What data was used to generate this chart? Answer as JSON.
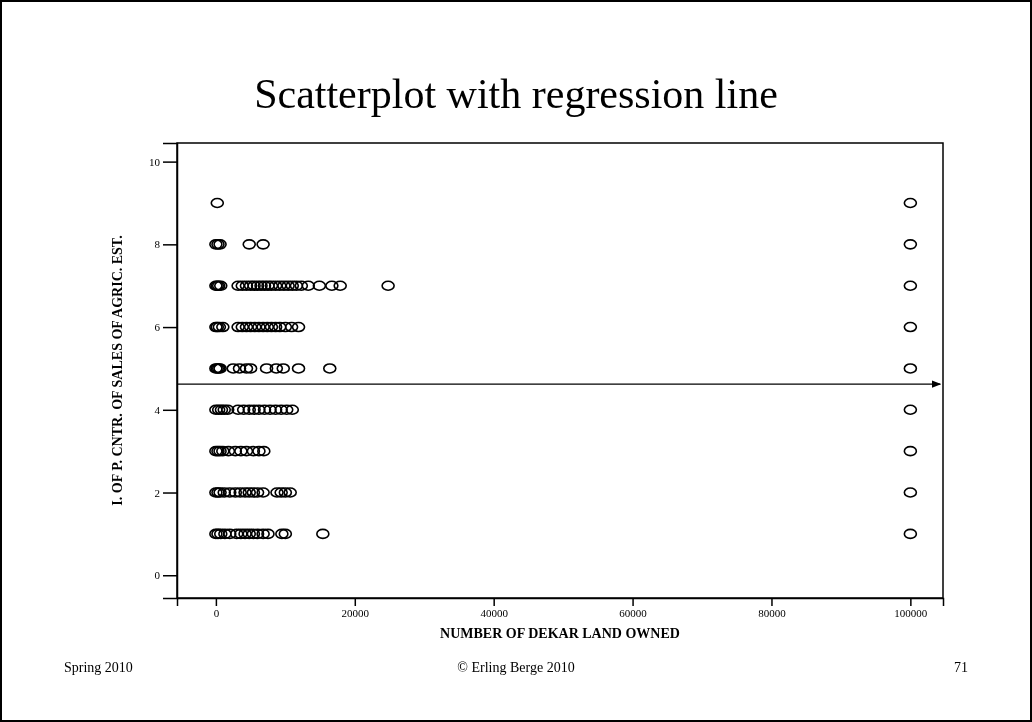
{
  "chart_data": {
    "type": "scatter",
    "title": "Scatterplot with regression line",
    "xlabel": "NUMBER OF DEKAR LAND OWNED",
    "ylabel": "I. OF P. CNTR. OF SALES OF AGRIC. EST.",
    "xlim": [
      -5600,
      104700
    ],
    "xticks": [
      0,
      20000,
      40000,
      60000,
      80000,
      100000
    ],
    "ylim": [
      -0.55,
      10.45
    ],
    "yticks": [
      0,
      2,
      4,
      6,
      8,
      10
    ],
    "grid": false,
    "annotations": [
      "Spring 2010",
      "© Erling Berge 2010",
      "71"
    ],
    "series": [
      {
        "marker": "circle",
        "color": "#000000",
        "x": [
          200,
          100000,
          0,
          300,
          600,
          4800,
          6800,
          100000,
          0,
          200,
          400,
          700,
          3200,
          3800,
          4400,
          5000,
          5500,
          6000,
          6500,
          7000,
          7500,
          8000,
          8600,
          9200,
          9800,
          10400,
          11000,
          11600,
          12300,
          13300,
          14900,
          16700,
          17900,
          24800,
          100000,
          0,
          200,
          500,
          1000,
          3200,
          3800,
          4400,
          5000,
          5600,
          6200,
          6800,
          7400,
          8000,
          8600,
          9200,
          10000,
          10900,
          11900,
          100000,
          0,
          200,
          400,
          600,
          2500,
          3400,
          4400,
          5000,
          7300,
          8700,
          9700,
          11900,
          16400,
          100000,
          0,
          400,
          800,
          1200,
          1700,
          3200,
          4000,
          4800,
          5500,
          6200,
          7000,
          7800,
          8600,
          9400,
          10200,
          11000,
          100000,
          0,
          300,
          600,
          1000,
          1800,
          2800,
          3600,
          4400,
          5400,
          6200,
          6900,
          100000,
          0,
          300,
          600,
          1200,
          2000,
          2800,
          3500,
          4200,
          4800,
          5400,
          6000,
          6800,
          8800,
          9400,
          10000,
          10700,
          100000,
          0,
          300,
          700,
          1300,
          2000,
          3000,
          3600,
          4200,
          4800,
          5400,
          6000,
          6800,
          7500,
          9500,
          10000,
          15400,
          100000
        ],
        "values": [
          9,
          9,
          8,
          8,
          8,
          8,
          8,
          8,
          7,
          7,
          7,
          7,
          7,
          7,
          7,
          7,
          7,
          7,
          7,
          7,
          7,
          7,
          7,
          7,
          7,
          7,
          7,
          7,
          7,
          7,
          7,
          7,
          7,
          7,
          7,
          6,
          6,
          6,
          6,
          6,
          6,
          6,
          6,
          6,
          6,
          6,
          6,
          6,
          6,
          6,
          6,
          6,
          6,
          6,
          5,
          5,
          5,
          5,
          5,
          5,
          5,
          5,
          5,
          5,
          5,
          5,
          5,
          5,
          4,
          4,
          4,
          4,
          4,
          4,
          4,
          4,
          4,
          4,
          4,
          4,
          4,
          4,
          4,
          4,
          4,
          3,
          3,
          3,
          3,
          3,
          3,
          3,
          3,
          3,
          3,
          3,
          3,
          2,
          2,
          2,
          2,
          2,
          2,
          2,
          2,
          2,
          2,
          2,
          2,
          2,
          2,
          2,
          2,
          2,
          1,
          1,
          1,
          1,
          1,
          1,
          1,
          1,
          1,
          1,
          1,
          1,
          1,
          1,
          1,
          1,
          1
        ]
      },
      {
        "type": "line",
        "marker": "none",
        "color": "#000000",
        "x": [
          -5600,
          104300
        ],
        "values": [
          4.62,
          4.62
        ]
      }
    ]
  }
}
